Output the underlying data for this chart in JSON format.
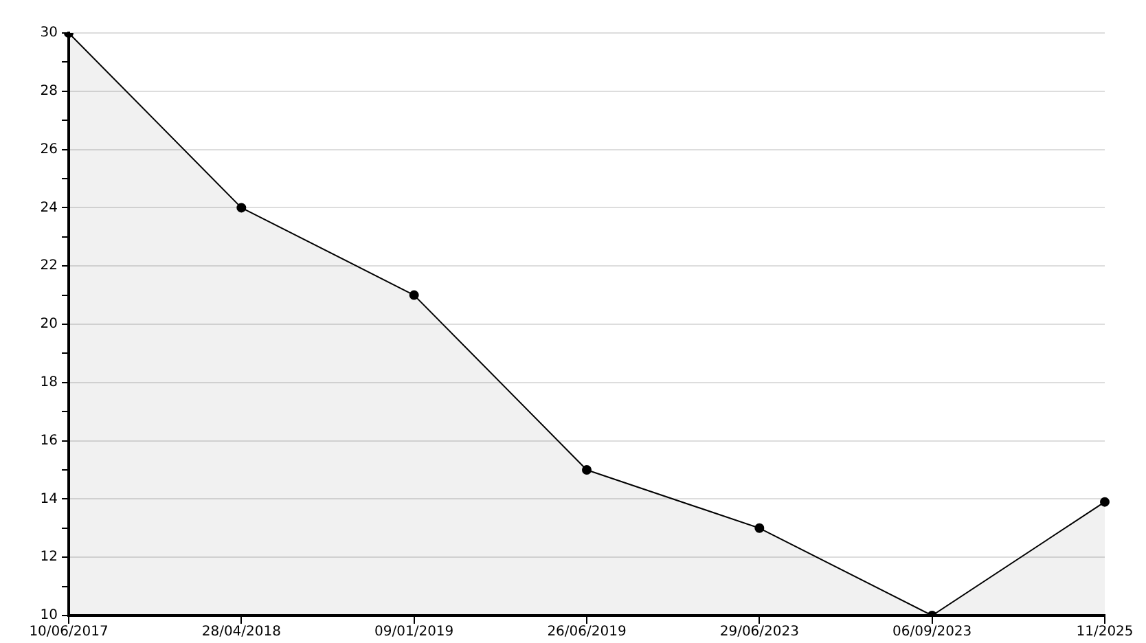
{
  "chart_data": {
    "type": "area",
    "categories": [
      "10/06/2017",
      "28/04/2018",
      "09/01/2019",
      "26/06/2019",
      "29/06/2023",
      "06/09/2023",
      "11/2025"
    ],
    "series": [
      {
        "color": "#000000",
        "values": [
          30,
          24,
          21,
          15,
          13,
          10,
          13.9
        ]
      }
    ],
    "ylim": [
      10,
      30
    ],
    "yticks": [
      10,
      {
        "value": 11,
        "label": null
      },
      12,
      {
        "value": 13,
        "label": null
      },
      14,
      {
        "value": 15,
        "label": null
      },
      16,
      {
        "value": 17,
        "label": null
      },
      18,
      {
        "value": 19,
        "label": null
      },
      20,
      {
        "value": 21,
        "label": null
      },
      22,
      {
        "value": 23,
        "label": null
      },
      24,
      {
        "value": 25,
        "label": null
      },
      26,
      {
        "value": 27,
        "label": null
      },
      28,
      {
        "value": 29,
        "label": null
      },
      30
    ],
    "grid": "y",
    "legend": false,
    "marker": "circle",
    "line_style": "solid"
  }
}
